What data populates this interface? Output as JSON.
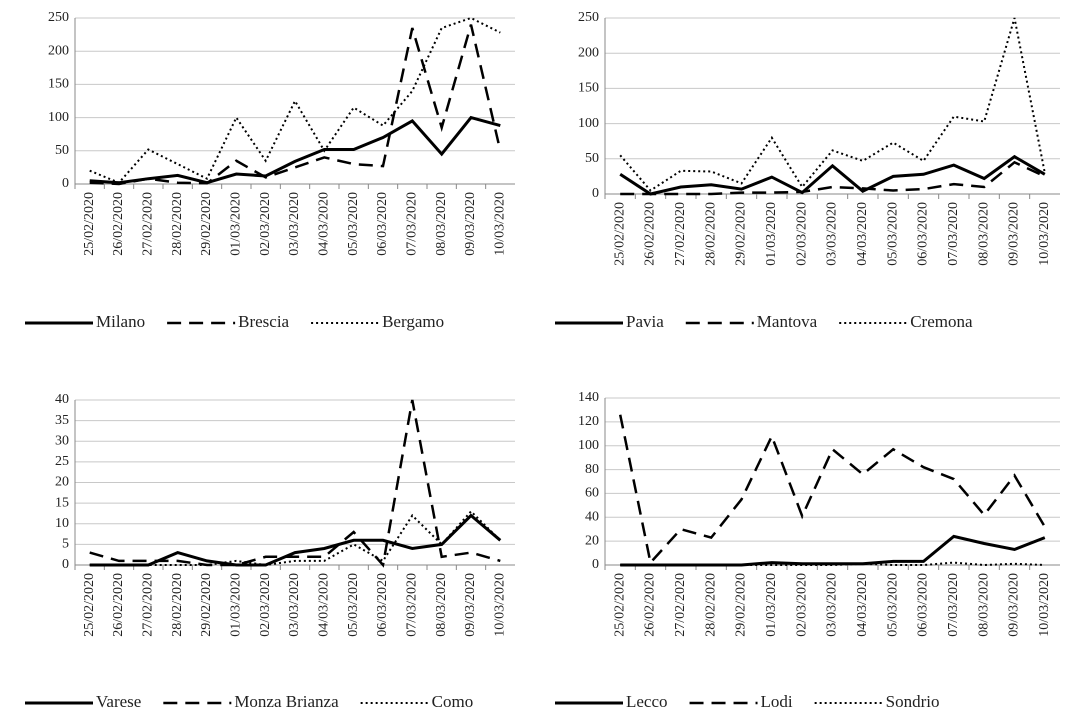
{
  "chart_data": [
    {
      "type": "line",
      "categories": [
        "25/02/2020",
        "26/02/2020",
        "27/02/2020",
        "28/02/2020",
        "29/02/2020",
        "01/03/2020",
        "02/03/2020",
        "03/03/2020",
        "04/03/2020",
        "05/03/2020",
        "06/03/2020",
        "07/03/2020",
        "08/03/2020",
        "09/03/2020",
        "10/03/2020"
      ],
      "ylim": [
        0,
        250
      ],
      "yticks": [
        0,
        50,
        100,
        150,
        200,
        250
      ],
      "grid": true,
      "legend": "bottom",
      "series": [
        {
          "name": "Milano",
          "color": "#000000",
          "style": "solid",
          "values": [
            5,
            2,
            8,
            13,
            2,
            15,
            12,
            34,
            52,
            52,
            70,
            95,
            45,
            100,
            88
          ]
        },
        {
          "name": "Brescia",
          "color": "#000000",
          "style": "dashed",
          "values": [
            2,
            0,
            8,
            2,
            1,
            35,
            10,
            25,
            40,
            30,
            27,
            235,
            85,
            240,
            50
          ]
        },
        {
          "name": "Bergamo",
          "color": "#000000",
          "style": "dotted",
          "values": [
            20,
            2,
            52,
            30,
            8,
            100,
            35,
            125,
            50,
            115,
            88,
            140,
            235,
            250,
            228
          ]
        }
      ]
    },
    {
      "type": "line",
      "categories": [
        "25/02/2020",
        "26/02/2020",
        "27/02/2020",
        "28/02/2020",
        "29/02/2020",
        "01/03/2020",
        "02/03/2020",
        "03/03/2020",
        "04/03/2020",
        "05/03/2020",
        "06/03/2020",
        "07/03/2020",
        "08/03/2020",
        "09/03/2020",
        "10/03/2020"
      ],
      "ylim": [
        0,
        250
      ],
      "yticks": [
        0,
        50,
        100,
        150,
        200,
        250
      ],
      "grid": true,
      "legend": "bottom",
      "series": [
        {
          "name": "Pavia",
          "color": "#000000",
          "style": "solid",
          "values": [
            28,
            0,
            10,
            13,
            7,
            24,
            2,
            40,
            4,
            25,
            28,
            41,
            22,
            53,
            28
          ]
        },
        {
          "name": "Mantova",
          "color": "#000000",
          "style": "dashed",
          "values": [
            0,
            0,
            0,
            0,
            2,
            2,
            3,
            10,
            8,
            5,
            7,
            14,
            10,
            45,
            25
          ]
        },
        {
          "name": "Cremona",
          "color": "#000000",
          "style": "dotted",
          "values": [
            55,
            5,
            33,
            32,
            15,
            80,
            10,
            62,
            47,
            73,
            47,
            110,
            103,
            250,
            30
          ]
        }
      ]
    },
    {
      "type": "line",
      "categories": [
        "25/02/2020",
        "26/02/2020",
        "27/02/2020",
        "28/02/2020",
        "29/02/2020",
        "01/03/2020",
        "02/03/2020",
        "03/03/2020",
        "04/03/2020",
        "05/03/2020",
        "06/03/2020",
        "07/03/2020",
        "08/03/2020",
        "09/03/2020",
        "10/03/2020"
      ],
      "ylim": [
        0,
        40
      ],
      "yticks": [
        0,
        5,
        10,
        15,
        20,
        25,
        30,
        35,
        40
      ],
      "grid": true,
      "legend": "bottom",
      "series": [
        {
          "name": "Varese",
          "color": "#000000",
          "style": "solid",
          "values": [
            0,
            0,
            0,
            3,
            1,
            0,
            0,
            3,
            4,
            6,
            6,
            4,
            5,
            12,
            6
          ]
        },
        {
          "name": "Monza Brianza",
          "color": "#000000",
          "style": "dashed",
          "values": [
            3,
            1,
            1,
            1,
            0,
            0,
            2,
            2,
            2,
            8,
            0,
            40,
            2,
            3,
            1
          ]
        },
        {
          "name": "Como",
          "color": "#000000",
          "style": "dotted",
          "values": [
            0,
            0,
            0,
            0,
            0,
            1,
            0,
            1,
            1,
            5,
            1,
            12,
            5,
            13,
            6
          ]
        }
      ]
    },
    {
      "type": "line",
      "categories": [
        "25/02/2020",
        "26/02/2020",
        "27/02/2020",
        "28/02/2020",
        "29/02/2020",
        "01/03/2020",
        "02/03/2020",
        "03/03/2020",
        "04/03/2020",
        "05/03/2020",
        "06/03/2020",
        "07/03/2020",
        "08/03/2020",
        "09/03/2020",
        "10/03/2020"
      ],
      "ylim": [
        0,
        140
      ],
      "yticks": [
        0,
        20,
        40,
        60,
        80,
        100,
        120,
        140
      ],
      "grid": true,
      "legend": "bottom",
      "series": [
        {
          "name": "Lecco",
          "color": "#000000",
          "style": "solid",
          "values": [
            0,
            0,
            0,
            0,
            0,
            2,
            1,
            1,
            1,
            3,
            3,
            24,
            18,
            13,
            23
          ]
        },
        {
          "name": "Lodi",
          "color": "#000000",
          "style": "dashed",
          "values": [
            126,
            2,
            30,
            23,
            55,
            108,
            41,
            97,
            76,
            97,
            82,
            72,
            42,
            75,
            32
          ]
        },
        {
          "name": "Sondrio",
          "color": "#000000",
          "style": "dotted",
          "values": [
            0,
            0,
            0,
            0,
            0,
            0,
            0,
            0,
            1,
            0,
            0,
            2,
            0,
            1,
            0
          ]
        }
      ]
    }
  ]
}
